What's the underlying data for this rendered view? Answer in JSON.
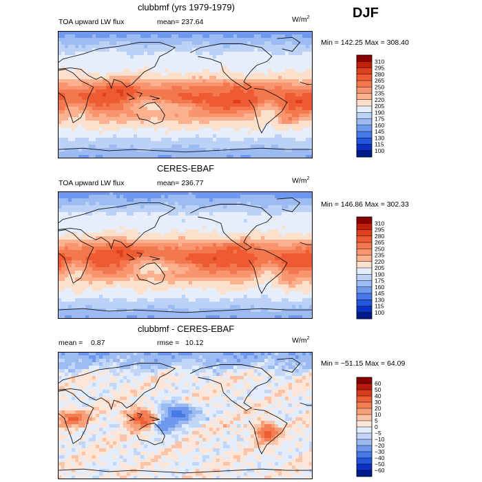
{
  "season": "DJF",
  "panels": [
    {
      "title": "clubbmf (yrs 1979-1979)",
      "variable": "TOA upward LW flux",
      "stat_label": "mean=",
      "stat_value": "237.64",
      "units": "W/m",
      "units_exp": "2",
      "minmax": "Min = 142.25 Max = 308.40",
      "colorbar": {
        "levels": [
          "310",
          "295",
          "280",
          "265",
          "250",
          "235",
          "220",
          "205",
          "190",
          "175",
          "160",
          "145",
          "130",
          "115",
          "100"
        ],
        "colors": [
          "#8b0000",
          "#c21e0a",
          "#e0401a",
          "#ee5a32",
          "#f4784e",
          "#f8946e",
          "#fbb08f",
          "#fde0cc",
          "#e6eefb",
          "#bcd1f6",
          "#9dbbf3",
          "#6f99ee",
          "#4879e8",
          "#2355dd",
          "#0a30c4",
          "#001a8c"
        ]
      },
      "map_type": "abs"
    },
    {
      "title": "CERES-EBAF",
      "variable": "TOA upward LW flux",
      "stat_label": "mean=",
      "stat_value": "236.77",
      "units": "W/m",
      "units_exp": "2",
      "minmax": "Min = 146.86 Max = 302.33",
      "colorbar": {
        "levels": [
          "310",
          "295",
          "280",
          "265",
          "250",
          "235",
          "220",
          "205",
          "190",
          "175",
          "160",
          "145",
          "130",
          "115",
          "100"
        ],
        "colors": [
          "#8b0000",
          "#c21e0a",
          "#e0401a",
          "#ee5a32",
          "#f4784e",
          "#f8946e",
          "#fbb08f",
          "#fde0cc",
          "#e6eefb",
          "#bcd1f6",
          "#9dbbf3",
          "#6f99ee",
          "#4879e8",
          "#2355dd",
          "#0a30c4",
          "#001a8c"
        ]
      },
      "map_type": "abs"
    },
    {
      "title": "clubbmf - CERES-EBAF",
      "variable": "",
      "stat_label": "mean =",
      "stat_value": "0.87",
      "rmse_label": "rmse =",
      "rmse_value": "10.12",
      "units": "W/m",
      "units_exp": "2",
      "minmax": "Min = −51.15 Max = 64.09",
      "colorbar": {
        "levels": [
          "60",
          "50",
          "40",
          "30",
          "20",
          "10",
          "5",
          "0",
          "−5",
          "−10",
          "−20",
          "−30",
          "−40",
          "−50",
          "−60"
        ],
        "colors": [
          "#8b0000",
          "#b81b0c",
          "#d83a1c",
          "#ec5d34",
          "#f47d52",
          "#f8a07a",
          "#fbc4a8",
          "#fde6d8",
          "#e2ecfb",
          "#c2d6f7",
          "#9dbbf3",
          "#6f99ee",
          "#4879e8",
          "#2355dd",
          "#0a30c4",
          "#001a8c"
        ]
      },
      "map_type": "diff"
    }
  ],
  "chart_data": [
    {
      "type": "heatmap",
      "title": "clubbmf (yrs 1979-1979)",
      "subtitle": "TOA upward LW flux",
      "units": "W/m^2",
      "season": "DJF",
      "mean": 237.64,
      "min": 142.25,
      "max": 308.4,
      "contour_levels": [
        100,
        115,
        130,
        145,
        160,
        175,
        190,
        205,
        220,
        235,
        250,
        265,
        280,
        295,
        310
      ]
    },
    {
      "type": "heatmap",
      "title": "CERES-EBAF",
      "subtitle": "TOA upward LW flux",
      "units": "W/m^2",
      "season": "DJF",
      "mean": 236.77,
      "min": 146.86,
      "max": 302.33,
      "contour_levels": [
        100,
        115,
        130,
        145,
        160,
        175,
        190,
        205,
        220,
        235,
        250,
        265,
        280,
        295,
        310
      ]
    },
    {
      "type": "heatmap",
      "title": "clubbmf - CERES-EBAF",
      "units": "W/m^2",
      "season": "DJF",
      "mean": 0.87,
      "rmse": 10.12,
      "min": -51.15,
      "max": 64.09,
      "contour_levels": [
        -60,
        -50,
        -40,
        -30,
        -20,
        -10,
        -5,
        0,
        5,
        10,
        20,
        30,
        40,
        50,
        60
      ]
    }
  ]
}
